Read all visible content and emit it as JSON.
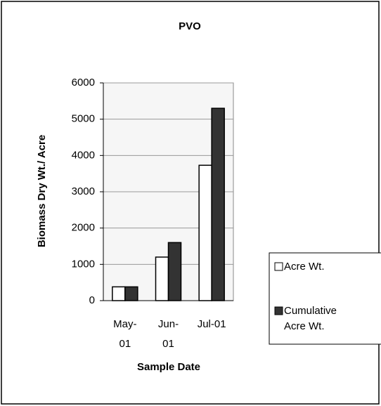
{
  "chart_data": {
    "type": "bar",
    "title": "PVO",
    "x_label": "Sample Date",
    "y_label": "Biomass Dry Wt./ Acre",
    "categories": [
      "May-01",
      "Jun-01",
      "Jul-01"
    ],
    "series": [
      {
        "name": "Acre Wt.",
        "color": "#ffffff",
        "values": [
          380,
          1200,
          3730
        ]
      },
      {
        "name": "Cumulative Acre Wt.",
        "color": "#333333",
        "values": [
          380,
          1600,
          5300
        ]
      }
    ],
    "ylim": [
      0,
      6000
    ],
    "yticks": [
      0,
      1000,
      2000,
      3000,
      4000,
      5000,
      6000
    ],
    "grid": true,
    "legend": "right"
  }
}
